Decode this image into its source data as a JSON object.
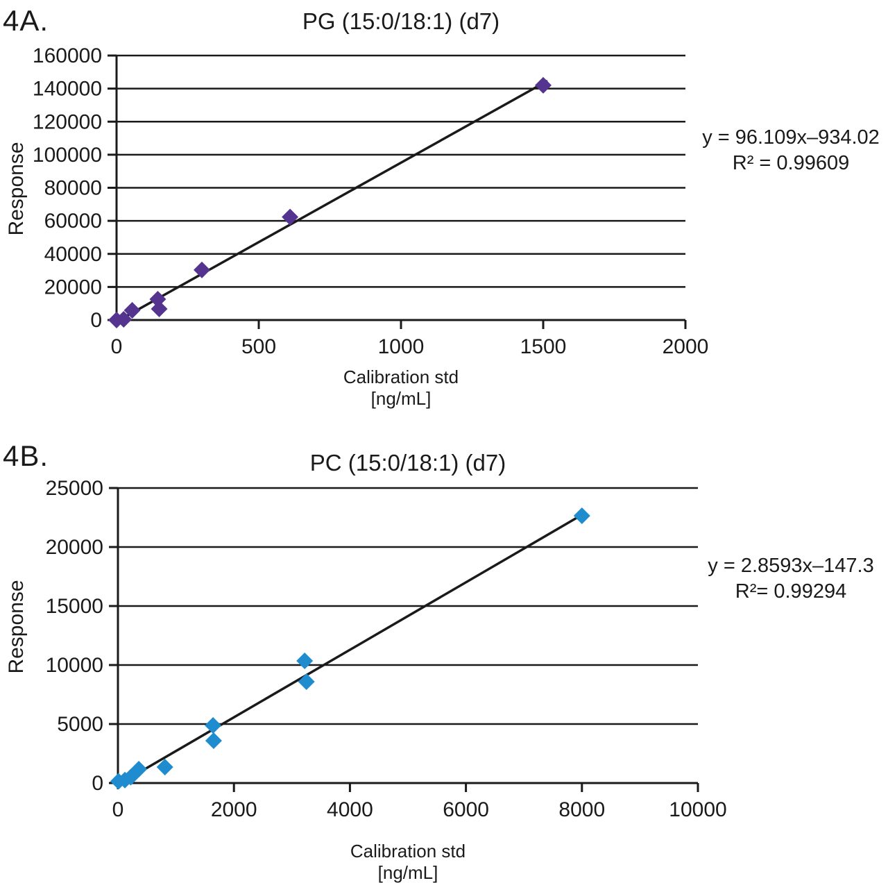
{
  "page_background": "#ffffff",
  "text_color": "#1a1a1a",
  "chart_data": [
    {
      "type": "scatter",
      "panel_label": "4A.",
      "title": "PG (15:0/18:1) (d7)",
      "ylabel": "Response",
      "xlabel_line1": "Calibration std",
      "xlabel_line2": "[ng/mL]",
      "xlim": [
        0,
        2000
      ],
      "ylim": [
        0,
        160000
      ],
      "x_ticks": [
        0,
        500,
        1000,
        1500,
        2000
      ],
      "y_ticks": [
        0,
        20000,
        40000,
        60000,
        80000,
        100000,
        120000,
        140000,
        160000
      ],
      "grid": "horizontal-only",
      "legend": "none",
      "marker": "diamond",
      "marker_color": "#54348F",
      "line_color": "#1a1a1a",
      "points": [
        [
          0,
          0
        ],
        [
          25,
          400
        ],
        [
          55,
          5900
        ],
        [
          145,
          12600
        ],
        [
          150,
          6700
        ],
        [
          300,
          30300
        ],
        [
          610,
          62300
        ],
        [
          1500,
          142000
        ]
      ],
      "trendline": {
        "slope": 96.109,
        "intercept": -934.02,
        "x_start": 10,
        "x_end": 1515
      },
      "equation": {
        "line1": "y = 96.109x–934.02",
        "line2": "R² = 0.99609"
      }
    },
    {
      "type": "scatter",
      "panel_label": "4B.",
      "title": "PC (15:0/18:1) (d7)",
      "ylabel": "Response",
      "xlabel_line1": "Calibration std",
      "xlabel_line2": "[ng/mL]",
      "xlim": [
        0,
        10000
      ],
      "ylim": [
        0,
        25000
      ],
      "x_ticks": [
        0,
        2000,
        4000,
        6000,
        8000,
        10000
      ],
      "y_ticks": [
        0,
        5000,
        10000,
        15000,
        20000,
        25000
      ],
      "grid": "horizontal-only",
      "legend": "none",
      "marker": "diamond",
      "marker_color": "#1E8CCE",
      "line_color": "#1a1a1a",
      "points": [
        [
          10,
          150
        ],
        [
          120,
          250
        ],
        [
          220,
          500
        ],
        [
          360,
          1180
        ],
        [
          810,
          1350
        ],
        [
          1640,
          4880
        ],
        [
          1650,
          3590
        ],
        [
          3220,
          10350
        ],
        [
          3250,
          8590
        ],
        [
          8000,
          22650
        ]
      ],
      "trendline": {
        "slope": 2.8593,
        "intercept": -147.3,
        "x_start": 60,
        "x_end": 8020
      },
      "equation": {
        "line1": "y = 2.8593x–147.3",
        "line2": "R²= 0.99294"
      }
    }
  ]
}
